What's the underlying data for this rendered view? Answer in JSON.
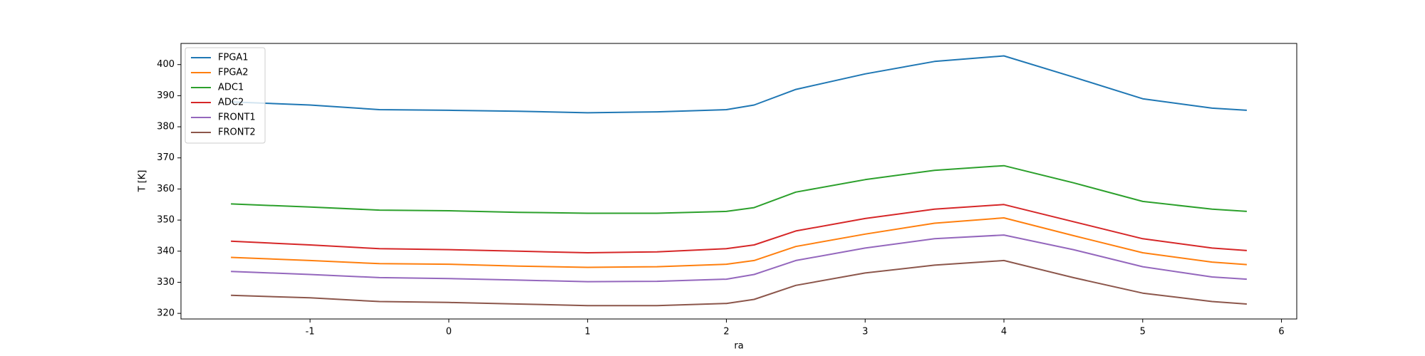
{
  "chart_data": {
    "type": "line",
    "xlabel": "ra",
    "ylabel": "T [K]",
    "x": [
      -1.57,
      -1,
      -0.5,
      0,
      0.5,
      1,
      1.5,
      2,
      2.2,
      2.5,
      3,
      3.5,
      4,
      4.5,
      5,
      5.5,
      5.75
    ],
    "series": [
      {
        "name": "FPGA1",
        "color": "#1f77b4",
        "values": [
          388,
          387,
          385.5,
          385.3,
          385,
          384.5,
          384.8,
          385.5,
          387,
          392,
          397,
          401,
          402.8,
          396,
          389,
          386,
          385.3
        ]
      },
      {
        "name": "FPGA2",
        "color": "#ff7f0e",
        "values": [
          338,
          337,
          336,
          335.8,
          335.2,
          334.8,
          335,
          335.8,
          337,
          341.5,
          345.5,
          349,
          350.7,
          345,
          339.5,
          336.5,
          335.7
        ]
      },
      {
        "name": "ADC1",
        "color": "#2ca02c",
        "values": [
          355.2,
          354.2,
          353.2,
          353,
          352.5,
          352.2,
          352.2,
          352.8,
          354,
          359,
          363,
          366,
          367.5,
          362,
          356,
          353.5,
          352.8
        ]
      },
      {
        "name": "ADC2",
        "color": "#d62728",
        "values": [
          343.2,
          342,
          340.8,
          340.5,
          340,
          339.5,
          339.8,
          340.8,
          342,
          346.5,
          350.5,
          353.5,
          355,
          349.5,
          344,
          341,
          340.2
        ]
      },
      {
        "name": "FRONT1",
        "color": "#9467bd",
        "values": [
          333.5,
          332.5,
          331.5,
          331.2,
          330.7,
          330.2,
          330.3,
          331,
          332.5,
          337,
          341,
          344,
          345.2,
          340.5,
          335,
          331.7,
          331
        ]
      },
      {
        "name": "FRONT2",
        "color": "#8c564b",
        "values": [
          325.8,
          325,
          323.8,
          323.5,
          323,
          322.5,
          322.5,
          323.2,
          324.5,
          329,
          333,
          335.5,
          337,
          331.5,
          326.5,
          323.8,
          323
        ]
      }
    ],
    "xlim": [
      -1.93,
      6.11
    ],
    "xticks": [
      -1,
      0,
      1,
      2,
      3,
      4,
      5,
      6
    ],
    "ylim": [
      318.2,
      406.8
    ],
    "yticks": [
      320,
      330,
      340,
      350,
      360,
      370,
      380,
      390,
      400
    ],
    "legend": "upper left",
    "grid": false
  }
}
